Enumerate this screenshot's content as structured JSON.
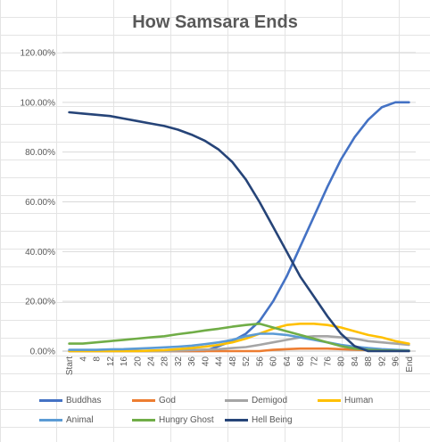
{
  "chart_data": {
    "type": "line",
    "title": "How Samsara Ends",
    "xlabel": "",
    "ylabel": "",
    "ylim": [
      0,
      1.2
    ],
    "yticks": [
      "0.00%",
      "20.00%",
      "40.00%",
      "60.00%",
      "80.00%",
      "100.00%",
      "120.00%"
    ],
    "x": [
      "Start",
      "4",
      "8",
      "12",
      "16",
      "20",
      "24",
      "28",
      "32",
      "36",
      "40",
      "44",
      "48",
      "52",
      "56",
      "60",
      "64",
      "68",
      "72",
      "76",
      "80",
      "84",
      "88",
      "92",
      "96",
      "End"
    ],
    "grid": "horizontal",
    "legend": "bottom",
    "series": [
      {
        "name": "Buddhas",
        "color": "#4472C4",
        "values": [
          0,
          0,
          0,
          0,
          0,
          0,
          0,
          0,
          0,
          0,
          0,
          0.02,
          0.04,
          0.07,
          0.12,
          0.2,
          0.3,
          0.42,
          0.54,
          0.66,
          0.77,
          0.86,
          0.93,
          0.98,
          1.0,
          1.0
        ]
      },
      {
        "name": "God",
        "color": "#ED7D31",
        "values": [
          0,
          0,
          0,
          0,
          0,
          0,
          0,
          0,
          0,
          0,
          0,
          0,
          0,
          0,
          0,
          0.005,
          0.008,
          0.01,
          0.01,
          0.01,
          0.008,
          0.006,
          0.004,
          0.003,
          0.002,
          0.002
        ]
      },
      {
        "name": "Demigod",
        "color": "#A5A5A5",
        "values": [
          0,
          0,
          0,
          0,
          0,
          0,
          0,
          0,
          0.002,
          0.004,
          0.006,
          0.008,
          0.012,
          0.016,
          0.025,
          0.035,
          0.045,
          0.055,
          0.06,
          0.06,
          0.055,
          0.05,
          0.04,
          0.035,
          0.03,
          0.025
        ]
      },
      {
        "name": "Human",
        "color": "#FFC000",
        "values": [
          0,
          0,
          0,
          0,
          0,
          0,
          0.002,
          0.004,
          0.008,
          0.012,
          0.018,
          0.025,
          0.035,
          0.05,
          0.07,
          0.09,
          0.105,
          0.11,
          0.11,
          0.105,
          0.095,
          0.08,
          0.065,
          0.055,
          0.04,
          0.03
        ]
      },
      {
        "name": "Animal",
        "color": "#5B9BD5",
        "values": [
          0.005,
          0.005,
          0.005,
          0.007,
          0.008,
          0.01,
          0.012,
          0.015,
          0.018,
          0.022,
          0.028,
          0.035,
          0.045,
          0.06,
          0.07,
          0.07,
          0.065,
          0.055,
          0.045,
          0.035,
          0.025,
          0.018,
          0.012,
          0.008,
          0.005,
          0.003
        ]
      },
      {
        "name": "Hungry Ghost",
        "color": "#70AD47",
        "values": [
          0.03,
          0.03,
          0.035,
          0.04,
          0.045,
          0.05,
          0.055,
          0.06,
          0.068,
          0.075,
          0.083,
          0.09,
          0.098,
          0.105,
          0.11,
          0.095,
          0.08,
          0.065,
          0.05,
          0.035,
          0.02,
          0.01,
          0.005,
          0.003,
          0.002,
          0.001
        ]
      },
      {
        "name": "Hell Being",
        "color": "#264478",
        "values": [
          0.96,
          0.955,
          0.95,
          0.945,
          0.935,
          0.925,
          0.915,
          0.905,
          0.89,
          0.87,
          0.845,
          0.81,
          0.76,
          0.69,
          0.6,
          0.5,
          0.4,
          0.3,
          0.22,
          0.14,
          0.07,
          0.02,
          0,
          0,
          0,
          0
        ]
      }
    ]
  }
}
